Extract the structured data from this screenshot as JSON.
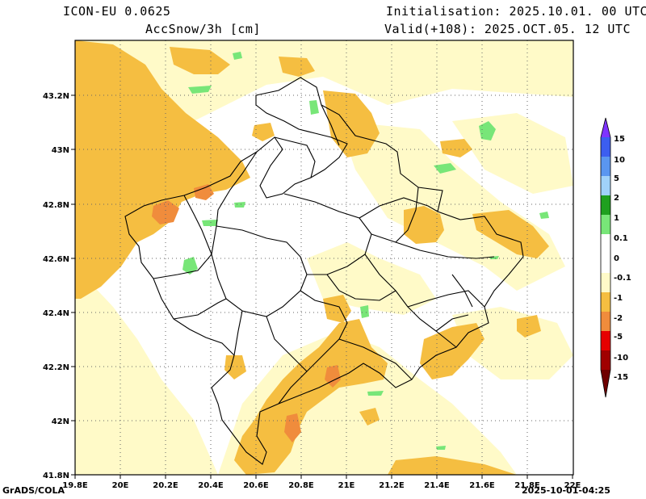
{
  "header": {
    "model": "ICON-EU 0.0625",
    "field": "AccSnow/3h [cm]",
    "initialisation": "Initialisation: 2025.10.01. 00 UTC",
    "valid": "Valid(+108): 2025.OCT.05. 12 UTC"
  },
  "footer": {
    "left": "GrADS/COLA",
    "right": "2025-10-01-04:25"
  },
  "map": {
    "lon_labels": [
      "19.8E",
      "20E",
      "20.2E",
      "20.4E",
      "20.6E",
      "20.8E",
      "21E",
      "21.2E",
      "21.4E",
      "21.6E",
      "21.8E",
      "22E"
    ],
    "lat_labels": [
      "43.2N",
      "43N",
      "42.8N",
      "42.6N",
      "42.4N",
      "42.2N",
      "42N",
      "41.8N"
    ]
  },
  "legend": {
    "labels": [
      "15",
      "10",
      "5",
      "2",
      "1",
      "0.1",
      "0",
      "-0.1",
      "-1",
      "-2",
      "-5",
      "-10",
      "-15"
    ],
    "colors": [
      "#7f33ff",
      "#3c5ef0",
      "#5a96f0",
      "#a0d2fa",
      "#1fa01f",
      "#78e678",
      "#ffffff",
      "#fffac8",
      "#f5be41",
      "#f08c3c",
      "#e60000",
      "#a00000",
      "#6e0000"
    ]
  }
}
